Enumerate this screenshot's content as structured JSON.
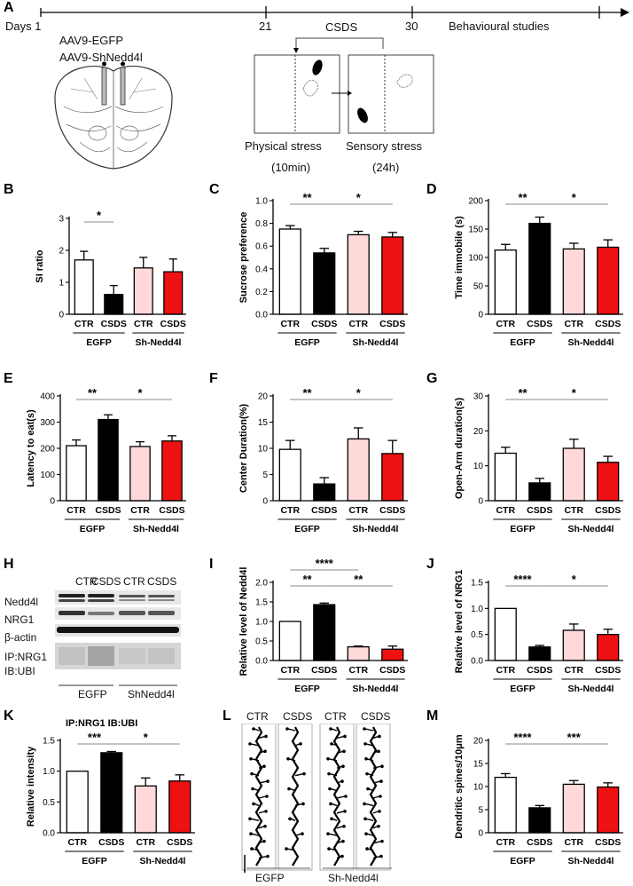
{
  "panel_letters": [
    "A",
    "B",
    "C",
    "D",
    "E",
    "F",
    "G",
    "H",
    "I",
    "J",
    "K",
    "L",
    "M"
  ],
  "timeline": {
    "days_label": "Days 1",
    "marks": [
      "21",
      "30"
    ],
    "csds_label": "CSDS",
    "behaviour_label": "Behavioural studies",
    "virus_1": "AAV9-EGFP",
    "virus_2": "AAV9-ShNedd4l",
    "physical_stress": "Physical stress",
    "physical_time": "(10min)",
    "sensory_stress": "Sensory stress",
    "sensory_time": "(24h)"
  },
  "group_labels": {
    "categories": [
      "CTR",
      "CSDS",
      "CTR",
      "CSDS"
    ],
    "group1": "EGFP",
    "group2": "Sh-Nedd4l"
  },
  "colors": {
    "ctr_egfp": "#ffffff",
    "csds_egfp": "#000000",
    "ctr_sh": "#ffd9d9",
    "csds_sh": "#ee1111"
  },
  "western_blot": {
    "header": [
      "CTR",
      "CSDS",
      "CTR",
      "CSDS"
    ],
    "rows": [
      "Nedd4l",
      "NRG1",
      "β-actin",
      "IP:NRG1",
      "IB:UBI"
    ],
    "groups": [
      "EGFP",
      "ShNedd4l"
    ]
  },
  "dendrite": {
    "header": [
      "CTR",
      "CSDS",
      "CTR",
      "CSDS"
    ],
    "groups": [
      "EGFP",
      "Sh-Nedd4l"
    ]
  },
  "chart_data": [
    {
      "panel": "B",
      "type": "bar",
      "categories": [
        "CTR",
        "CSDS",
        "CTR",
        "CSDS"
      ],
      "values": [
        1.7,
        0.62,
        1.45,
        1.33
      ],
      "errors": [
        0.27,
        0.28,
        0.33,
        0.4
      ],
      "ylabel": "SI ratio",
      "ylim": [
        0,
        3
      ],
      "yticks": [
        0,
        1,
        2,
        3
      ],
      "sig": [
        {
          "from": 0,
          "to": 1,
          "label": "*"
        }
      ]
    },
    {
      "panel": "C",
      "type": "bar",
      "categories": [
        "CTR",
        "CSDS",
        "CTR",
        "CSDS"
      ],
      "values": [
        0.75,
        0.54,
        0.7,
        0.68
      ],
      "errors": [
        0.03,
        0.04,
        0.03,
        0.04
      ],
      "ylabel": "Sucrose preference",
      "ylim": [
        0,
        1.0
      ],
      "yticks": [
        0.0,
        0.2,
        0.4,
        0.6,
        0.8,
        1.0
      ],
      "sig": [
        {
          "from": 0,
          "to": 1,
          "label": "**"
        },
        {
          "from": 1,
          "to": 3,
          "label": "*"
        }
      ]
    },
    {
      "panel": "D",
      "type": "bar",
      "categories": [
        "CTR",
        "CSDS",
        "CTR",
        "CSDS"
      ],
      "values": [
        113,
        160,
        115,
        118
      ],
      "errors": [
        10,
        11,
        10,
        13
      ],
      "ylabel": "Time immobile (s)",
      "ylim": [
        0,
        200
      ],
      "yticks": [
        0,
        50,
        100,
        150,
        200
      ],
      "sig": [
        {
          "from": 0,
          "to": 1,
          "label": "**"
        },
        {
          "from": 1,
          "to": 3,
          "label": "*"
        }
      ]
    },
    {
      "panel": "E",
      "type": "bar",
      "categories": [
        "CTR",
        "CSDS",
        "CTR",
        "CSDS"
      ],
      "values": [
        210,
        310,
        207,
        228
      ],
      "errors": [
        22,
        18,
        18,
        20
      ],
      "ylabel": "Latency to eat(s)",
      "ylim": [
        0,
        400
      ],
      "yticks": [
        0,
        100,
        200,
        300,
        400
      ],
      "sig": [
        {
          "from": 0,
          "to": 1,
          "label": "**"
        },
        {
          "from": 1,
          "to": 3,
          "label": "*"
        }
      ]
    },
    {
      "panel": "F",
      "type": "bar",
      "categories": [
        "CTR",
        "CSDS",
        "CTR",
        "CSDS"
      ],
      "values": [
        9.8,
        3.2,
        11.8,
        9.0
      ],
      "errors": [
        1.7,
        1.2,
        2.1,
        2.5
      ],
      "ylabel": "Center Duration(%)",
      "ylim": [
        0,
        20
      ],
      "yticks": [
        0,
        5,
        10,
        15,
        20
      ],
      "sig": [
        {
          "from": 0,
          "to": 1,
          "label": "**"
        },
        {
          "from": 1,
          "to": 3,
          "label": "*"
        }
      ]
    },
    {
      "panel": "G",
      "type": "bar",
      "categories": [
        "CTR",
        "CSDS",
        "CTR",
        "CSDS"
      ],
      "values": [
        13.6,
        5.1,
        15.0,
        11.0
      ],
      "errors": [
        1.7,
        1.3,
        2.6,
        1.7
      ],
      "ylabel": "Open-Arm duration(s)",
      "ylim": [
        0,
        30
      ],
      "yticks": [
        0,
        10,
        20,
        30
      ],
      "sig": [
        {
          "from": 0,
          "to": 1,
          "label": "**"
        },
        {
          "from": 1,
          "to": 3,
          "label": "*"
        }
      ]
    },
    {
      "panel": "I",
      "type": "bar",
      "categories": [
        "CTR",
        "CSDS",
        "CTR",
        "CSDS"
      ],
      "values": [
        1.0,
        1.43,
        0.35,
        0.29
      ],
      "errors": [
        0,
        0.04,
        0.02,
        0.08
      ],
      "ylabel": "Relative level of Nedd4l",
      "ylim": [
        0,
        2.0
      ],
      "yticks": [
        0.0,
        0.5,
        1.0,
        1.5,
        2.0
      ],
      "sig": [
        {
          "from": 0,
          "to": 1,
          "label": "**"
        },
        {
          "from": 0,
          "to": 2,
          "label": "****",
          "level": 2
        },
        {
          "from": 1,
          "to": 3,
          "label": "**"
        }
      ]
    },
    {
      "panel": "J",
      "type": "bar",
      "categories": [
        "CTR",
        "CSDS",
        "CTR",
        "CSDS"
      ],
      "values": [
        1.0,
        0.26,
        0.58,
        0.5
      ],
      "errors": [
        0,
        0.03,
        0.12,
        0.1
      ],
      "ylabel": "Relative level of NRG1",
      "ylim": [
        0,
        1.5
      ],
      "yticks": [
        0.0,
        0.5,
        1.0,
        1.5
      ],
      "sig": [
        {
          "from": 0,
          "to": 1,
          "label": "****"
        },
        {
          "from": 1,
          "to": 3,
          "label": "*"
        }
      ]
    },
    {
      "panel": "K",
      "type": "bar",
      "categories": [
        "CTR",
        "CSDS",
        "CTR",
        "CSDS"
      ],
      "values": [
        1.0,
        1.3,
        0.76,
        0.84
      ],
      "errors": [
        0,
        0.02,
        0.13,
        0.1
      ],
      "title": "IP:NRG1 IB:UBI",
      "ylabel": "Relative intensity",
      "ylim": [
        0,
        1.5
      ],
      "yticks": [
        0.0,
        0.5,
        1.0,
        1.5
      ],
      "sig": [
        {
          "from": 0,
          "to": 1,
          "label": "***"
        },
        {
          "from": 1,
          "to": 3,
          "label": "*"
        }
      ]
    },
    {
      "panel": "M",
      "type": "bar",
      "categories": [
        "CTR",
        "CSDS",
        "CTR",
        "CSDS"
      ],
      "values": [
        12.0,
        5.4,
        10.5,
        9.9
      ],
      "errors": [
        0.8,
        0.5,
        0.8,
        0.9
      ],
      "ylabel": "Dendritic spines/10μm",
      "ylim": [
        0,
        20
      ],
      "yticks": [
        0,
        5,
        10,
        15,
        20
      ],
      "sig": [
        {
          "from": 0,
          "to": 1,
          "label": "****"
        },
        {
          "from": 1,
          "to": 3,
          "label": "***"
        }
      ]
    }
  ]
}
